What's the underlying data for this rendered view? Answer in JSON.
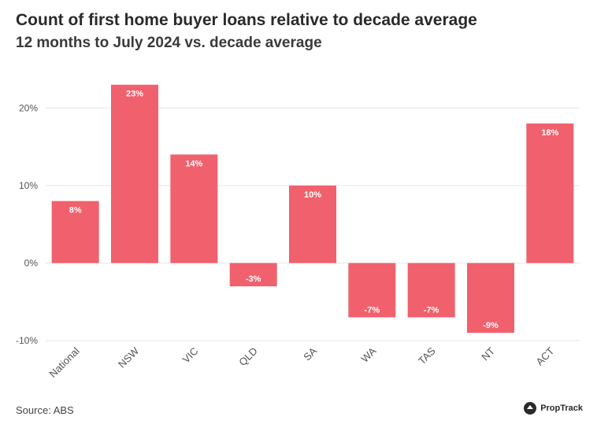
{
  "header": {
    "title": "Count of first home buyer loans relative to decade average",
    "subtitle": "12 months to July 2024 vs. decade average"
  },
  "footer": {
    "source": "Source: ABS",
    "brand": "PropTrack",
    "brand_icon": "proptrack-logo-icon"
  },
  "colors": {
    "bar": "#f0616d",
    "grid": "#e6e6e6",
    "axis_text": "#555555",
    "label_text": "#ffffff"
  },
  "chart_data": {
    "type": "bar",
    "title": "Count of first home buyer loans relative to decade average",
    "subtitle": "12 months to July 2024 vs. decade average",
    "categories": [
      "National",
      "NSW",
      "VIC",
      "QLD",
      "SA",
      "WA",
      "TAS",
      "NT",
      "ACT"
    ],
    "values": [
      8,
      23,
      14,
      -3,
      10,
      -7,
      -7,
      -9,
      18
    ],
    "data_labels": [
      "8%",
      "23%",
      "14%",
      "-3%",
      "10%",
      "-7%",
      "-7%",
      "-9%",
      "18%"
    ],
    "ylim": [
      -10,
      25
    ],
    "yticks": [
      -10,
      0,
      10,
      20
    ],
    "ytick_labels": [
      "-10%",
      "0%",
      "10%",
      "20%"
    ],
    "grid": true,
    "legend": "none"
  }
}
